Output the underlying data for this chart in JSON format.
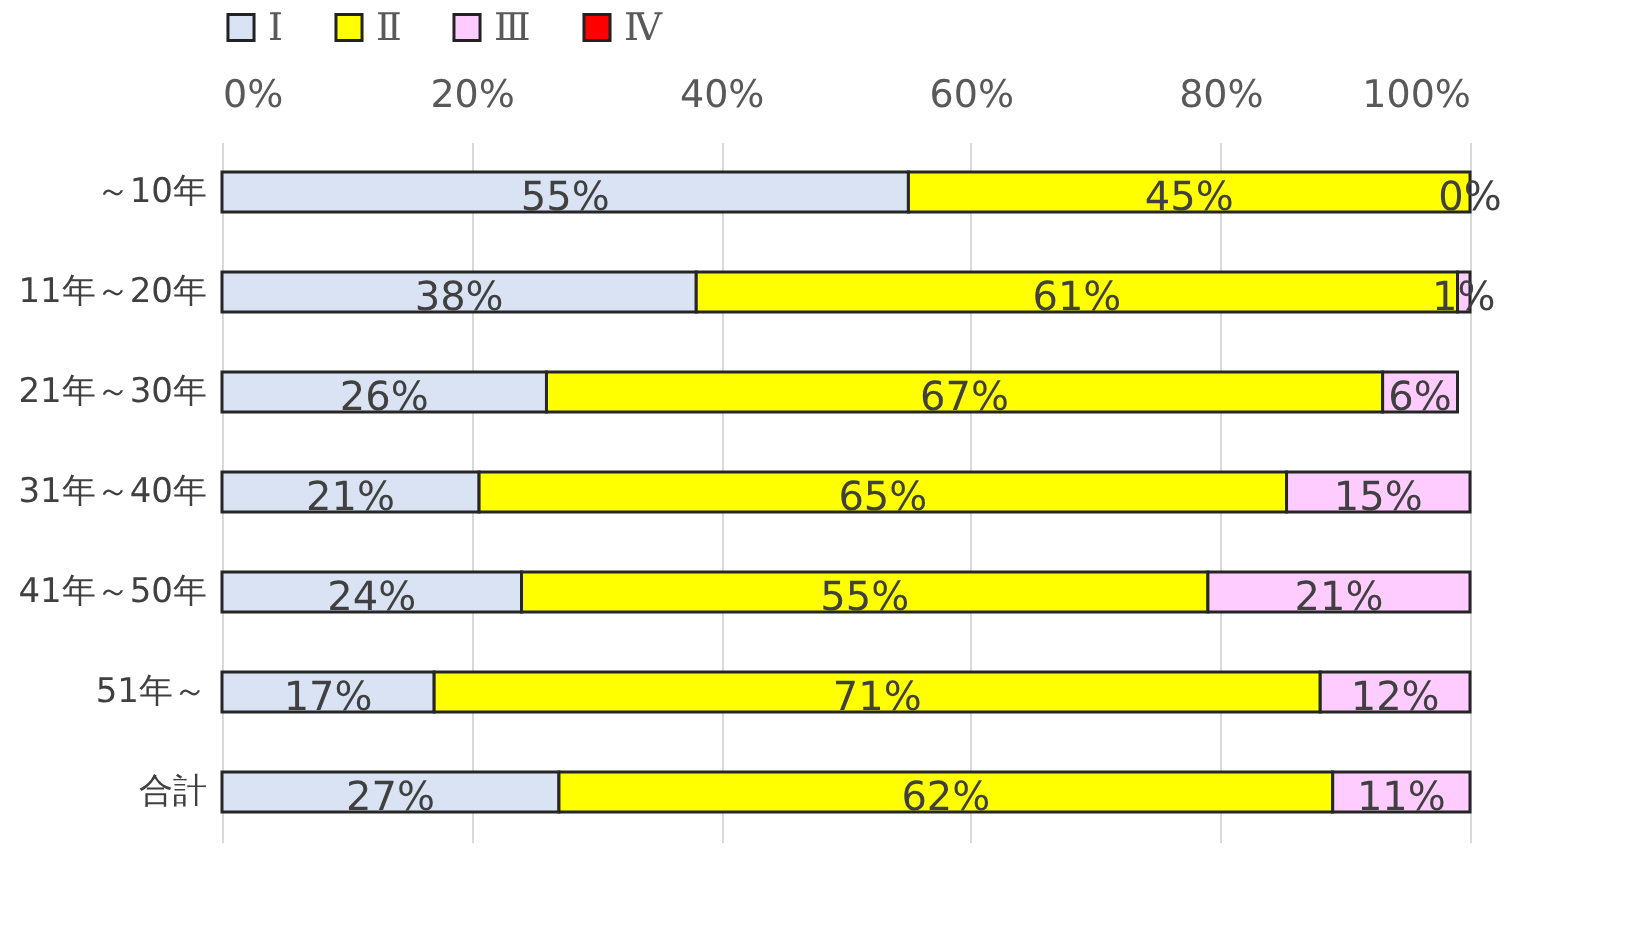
{
  "chart_data": {
    "type": "bar",
    "orientation": "horizontal",
    "stacked": true,
    "categories": [
      "～10年",
      "11年～20年",
      "21年～30年",
      "31年～40年",
      "41年～50年",
      "51年～",
      "合計"
    ],
    "series": [
      {
        "name": "Ⅰ",
        "color": "#dae3f3",
        "values": [
          55,
          38,
          26,
          20.6,
          24,
          17,
          27
        ],
        "value_labels": [
          "55%",
          "38%",
          "26%",
          "21%",
          "24%",
          "17%",
          "27%"
        ]
      },
      {
        "name": "Ⅱ",
        "color": "#ffff00",
        "values": [
          45,
          61,
          67,
          64.7,
          55,
          71,
          62
        ],
        "value_labels": [
          "45%",
          "61%",
          "67%",
          "65%",
          "55%",
          "71%",
          "62%"
        ]
      },
      {
        "name": "Ⅲ",
        "color": "#ffccff",
        "values": [
          0,
          1,
          6,
          14.7,
          21,
          12,
          11
        ],
        "value_labels": [
          "0%",
          "1%",
          "6%",
          "15%",
          "21%",
          "12%",
          "11%"
        ]
      },
      {
        "name": "Ⅳ",
        "color": "#ff0000",
        "values": [
          null,
          null,
          null,
          null,
          null,
          null,
          null
        ]
      }
    ],
    "xlim": [
      0,
      100
    ],
    "xticks": [
      {
        "value": 0,
        "label": "0%"
      },
      {
        "value": 20,
        "label": "20%"
      },
      {
        "value": 40,
        "label": "40%"
      },
      {
        "value": 60,
        "label": "60%"
      },
      {
        "value": 80,
        "label": "80%"
      },
      {
        "value": 100,
        "label": "100%"
      }
    ],
    "grid": true,
    "legend": "top"
  }
}
